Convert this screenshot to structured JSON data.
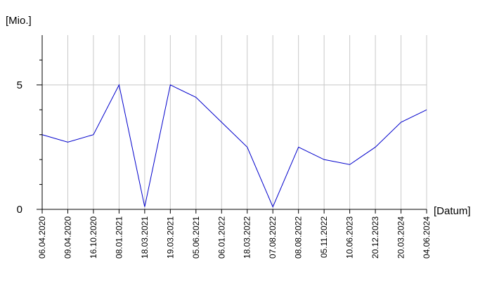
{
  "chart_data": {
    "type": "line",
    "y_label": "[Mio.]",
    "x_label": "[Datum]",
    "categories": [
      "06.04.2020",
      "09.04.2020",
      "16.10.2020",
      "08.01.2021",
      "18.03.2021",
      "19.03.2021",
      "05.06.2021",
      "06.01.2022",
      "18.03.2022",
      "07.08.2022",
      "08.08.2022",
      "05.11.2022",
      "10.06.2023",
      "20.12.2023",
      "20.03.2024",
      "04.06.2024"
    ],
    "values": [
      3.0,
      2.7,
      3.0,
      5.0,
      0.1,
      5.0,
      4.5,
      3.5,
      2.5,
      0.1,
      2.5,
      2.0,
      1.8,
      2.5,
      3.5,
      4.0
    ],
    "color": "#0000cc",
    "ylim": [
      0,
      7
    ],
    "yticks": [
      0,
      5
    ],
    "yminorticks": [
      1,
      2,
      3,
      4,
      6
    ],
    "grid": true
  }
}
